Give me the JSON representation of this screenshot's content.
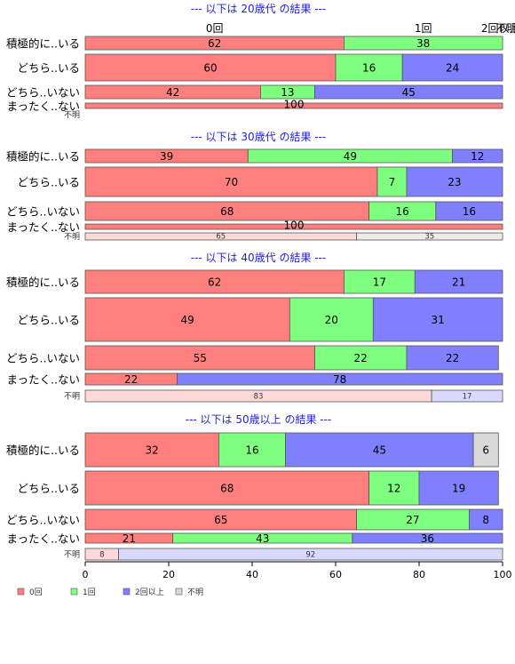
{
  "chart_data": {
    "type": "bar",
    "stacked": "percent",
    "orientation": "horizontal",
    "categories": [
      "0回",
      "1回",
      "2回以上",
      "不明"
    ],
    "colors": {
      "0回": "#ff7f7f",
      "1回": "#7fff7f",
      "2回以上": "#7f7fff",
      "不明": "#d9d9d9"
    },
    "faded_colors": {
      "0回": "#ffd9d9",
      "1回": "#d9ffd9",
      "2回以上": "#d9d9ff",
      "不明": "#ececec"
    },
    "xlim": [
      0,
      100
    ],
    "xticks": [
      0,
      20,
      40,
      60,
      80,
      100
    ],
    "top_category_labels": [
      "0回",
      "1回",
      "2回以上",
      "不明"
    ],
    "panels": [
      {
        "title": "--- 以下は 20歳代 の結果 ---",
        "rows": [
          {
            "label": "積極的に..いる",
            "values": [
              62,
              38,
              0,
              0
            ]
          },
          {
            "label": "どちら..いる",
            "values": [
              60,
              16,
              24,
              0
            ]
          },
          {
            "label": "どちら..いない",
            "values": [
              42,
              13,
              45,
              0
            ]
          },
          {
            "label": "まったく..ない",
            "values": [
              100,
              0,
              0,
              0
            ]
          },
          {
            "label": "不明",
            "values": [],
            "minor": true
          }
        ]
      },
      {
        "title": "--- 以下は 30歳代 の結果 ---",
        "rows": [
          {
            "label": "積極的に..いる",
            "values": [
              39,
              49,
              12,
              0
            ]
          },
          {
            "label": "どちら..いる",
            "values": [
              70,
              7,
              23,
              0
            ]
          },
          {
            "label": "どちら..いない",
            "values": [
              68,
              16,
              16,
              0
            ]
          },
          {
            "label": "まったく..ない",
            "values": [
              100,
              0,
              0,
              0
            ]
          },
          {
            "label": "不明",
            "values": [
              65,
              0,
              0,
              35
            ],
            "minor": true
          }
        ]
      },
      {
        "title": "--- 以下は 40歳代 の結果 ---",
        "rows": [
          {
            "label": "積極的に..いる",
            "values": [
              62,
              17,
              21,
              0
            ]
          },
          {
            "label": "どちら..いる",
            "values": [
              49,
              20,
              31,
              0
            ]
          },
          {
            "label": "どちら..いない",
            "values": [
              55,
              22,
              22,
              0
            ]
          },
          {
            "label": "まったく..ない",
            "values": [
              22,
              0,
              78,
              0
            ]
          },
          {
            "label": "不明",
            "values": [
              83,
              0,
              17,
              0
            ],
            "minor": true
          }
        ]
      },
      {
        "title": "--- 以下は 50歳以上 の結果 ---",
        "rows": [
          {
            "label": "積極的に..いる",
            "values": [
              32,
              16,
              45,
              6
            ]
          },
          {
            "label": "どちら..いる",
            "values": [
              68,
              12,
              19,
              0
            ]
          },
          {
            "label": "どちら..いない",
            "values": [
              65,
              27,
              8,
              0
            ]
          },
          {
            "label": "まったく..ない",
            "values": [
              21,
              43,
              36,
              0
            ]
          },
          {
            "label": "不明",
            "values": [
              8,
              0,
              92,
              0
            ],
            "minor": true
          }
        ]
      }
    ],
    "legend": [
      "0回",
      "1回",
      "2回以上",
      "不明"
    ],
    "legend_position": "bottom-left"
  }
}
